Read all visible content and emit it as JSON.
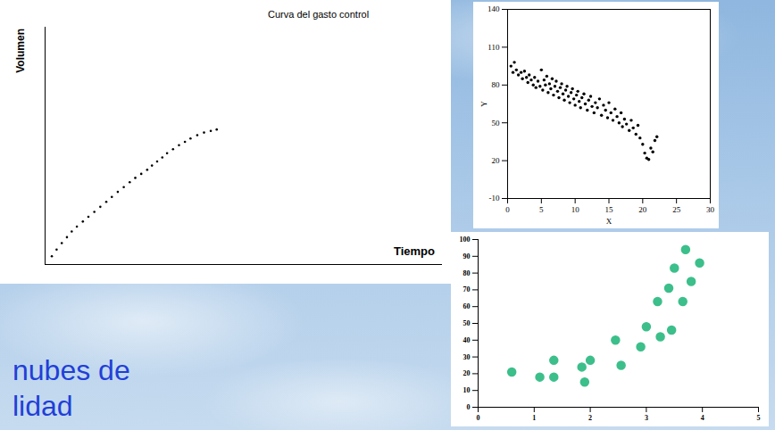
{
  "chart_data": [
    {
      "type": "scatter",
      "title": "Curva del gasto control",
      "x_label": "Tiempo",
      "y_label": "Volumen",
      "x": [
        1.7,
        2.9,
        4.2,
        5.5,
        6.7,
        8.0,
        9.5,
        10.9,
        12.4,
        13.9,
        15.4,
        16.8,
        18.3,
        19.8,
        21.3,
        22.7,
        24.2,
        25.7,
        26.9,
        28.2,
        29.5,
        30.7,
        32.2,
        33.7,
        35.2,
        36.6,
        38.3,
        40.0,
        41.7,
        43.2
      ],
      "values": [
        3.5,
        6.3,
        9.0,
        11.5,
        13.9,
        16.0,
        18.1,
        20.1,
        22.2,
        24.3,
        26.4,
        28.5,
        30.6,
        32.6,
        34.7,
        36.5,
        38.2,
        39.9,
        41.7,
        43.4,
        45.1,
        46.9,
        48.6,
        50.3,
        51.7,
        53.1,
        54.5,
        55.6,
        56.3,
        56.9
      ],
      "xlim": [
        0,
        100
      ],
      "ylim": [
        0,
        100
      ],
      "tick_labels": false,
      "color": "#000000"
    },
    {
      "type": "scatter",
      "x_label": "X",
      "y_label": "Y",
      "x": [
        0.5,
        0.8,
        1.0,
        1.3,
        1.6,
        2.0,
        2.2,
        2.5,
        2.8,
        3.0,
        3.2,
        3.5,
        3.8,
        4.0,
        4.2,
        4.5,
        4.8,
        5.0,
        5.2,
        5.4,
        5.6,
        5.8,
        6.0,
        6.2,
        6.4,
        6.6,
        6.8,
        7.0,
        7.2,
        7.4,
        7.6,
        7.8,
        8.0,
        8.2,
        8.4,
        8.6,
        8.8,
        9.0,
        9.2,
        9.4,
        9.6,
        9.8,
        10.0,
        10.2,
        10.4,
        10.6,
        10.8,
        11.0,
        11.3,
        11.5,
        11.8,
        12.0,
        12.3,
        12.5,
        12.8,
        13.0,
        13.3,
        13.6,
        13.9,
        14.2,
        14.5,
        14.8,
        15.0,
        15.3,
        15.6,
        15.9,
        16.2,
        16.5,
        16.8,
        17.0,
        17.3,
        17.6,
        18.0,
        18.3,
        18.6,
        19.0,
        19.3,
        19.6,
        20.0,
        20.3,
        20.6,
        20.9,
        21.2,
        21.5,
        21.8,
        22.1
      ],
      "values": [
        95,
        90,
        98,
        92,
        88,
        90,
        85,
        91,
        86,
        82,
        88,
        84,
        80,
        86,
        78,
        83,
        79,
        92,
        76,
        84,
        80,
        87,
        74,
        81,
        77,
        85,
        72,
        79,
        83,
        75,
        70,
        78,
        81,
        73,
        68,
        76,
        79,
        71,
        66,
        74,
        77,
        69,
        64,
        72,
        75,
        67,
        62,
        70,
        73,
        65,
        60,
        68,
        71,
        63,
        58,
        66,
        62,
        69,
        56,
        64,
        60,
        54,
        66,
        58,
        52,
        61,
        55,
        50,
        58,
        47,
        53,
        49,
        44,
        52,
        46,
        41,
        48,
        38,
        33,
        26,
        22,
        21,
        30,
        27,
        36,
        39
      ],
      "xlim": [
        0,
        30
      ],
      "xticks": [
        0,
        5,
        10,
        15,
        20,
        25,
        30
      ],
      "ylim": [
        -10,
        140
      ],
      "yticks": [
        -10,
        20,
        50,
        80,
        110,
        140
      ],
      "color": "#000000"
    },
    {
      "type": "scatter",
      "x": [
        0.6,
        1.1,
        1.35,
        1.35,
        1.85,
        1.9,
        2.0,
        2.45,
        2.55,
        2.9,
        3.0,
        3.2,
        3.25,
        3.4,
        3.45,
        3.5,
        3.65,
        3.7,
        3.8,
        3.95
      ],
      "values": [
        21,
        18,
        18,
        28,
        24,
        15,
        28,
        40,
        25,
        36,
        48,
        63,
        42,
        71,
        46,
        83,
        63,
        94,
        75,
        86
      ],
      "xlim": [
        0,
        5
      ],
      "xticks": [
        0,
        1,
        2,
        3,
        4,
        5
      ],
      "ylim": [
        0,
        100
      ],
      "yticks": [
        0,
        10,
        20,
        30,
        40,
        50,
        60,
        70,
        80,
        90,
        100
      ],
      "color": "#3cbf8a"
    }
  ],
  "text": [
    "nubes de",
    "lidad"
  ]
}
